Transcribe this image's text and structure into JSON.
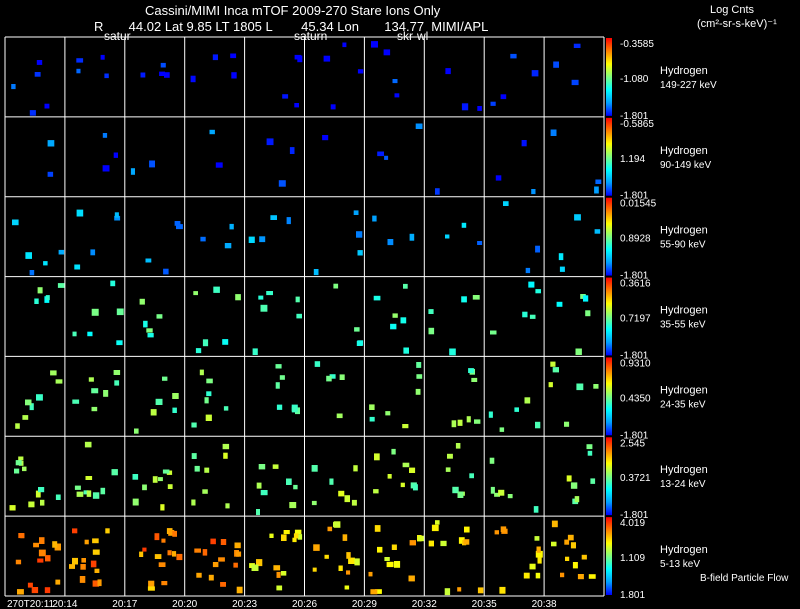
{
  "header": {
    "title": "Cassini/MIMI Inca mTOF  2009-270   Stare    Ions Only",
    "info": "R       44.02 Lat 9.85 LT 1805 L        45.34 Lon       134.77  MIMI/APL",
    "overlay_labels": [
      "satur",
      "saturn",
      "skr-wl"
    ],
    "units_line1": "Log Cnts",
    "units_line2": "(cm²-sr-s-keV)⁻¹"
  },
  "footer": {
    "flow_label": "B-field Particle Flow"
  },
  "colors": {
    "grid": "#ffffff",
    "background": "#000000"
  },
  "chart_data": {
    "type": "heatmap",
    "title": "Cassini/MIMI Inca mTOF 2009-270 Stare Ions Only",
    "species": "Hydrogen",
    "time_labels": [
      "270T20:11",
      "20:14",
      "20:17",
      "20:20",
      "20:23",
      "20:26",
      "20:29",
      "20:32",
      "20:35",
      "20:38"
    ],
    "colorbar_colors": [
      "#0000ff",
      "#00a0ff",
      "#00ffff",
      "#80ff80",
      "#ffff00",
      "#ff8000",
      "#ff0000"
    ],
    "panels": [
      {
        "label": "Hydrogen",
        "range": "149-227 keV",
        "max": "-0.3585",
        "mid": "-1.080",
        "min": "-1.801",
        "level": 0.03,
        "density": 2.5
      },
      {
        "label": "Hydrogen",
        "range": "90-149 keV",
        "max": "-0.5865",
        "mid": "1.194",
        "min": "-1.801",
        "level": 0.08,
        "density": 1.2
      },
      {
        "label": "Hydrogen",
        "range": "55-90 keV",
        "max": "0.01545",
        "mid": "0.8928",
        "min": "-1.801",
        "level": 0.2,
        "density": 2.5
      },
      {
        "label": "Hydrogen",
        "range": "35-55 keV",
        "max": "0.3616",
        "mid": "0.7197",
        "min": "-1.801",
        "level": 0.42,
        "density": 4
      },
      {
        "label": "Hydrogen",
        "range": "24-35 keV",
        "max": "0.9310",
        "mid": "0.4350",
        "min": "-1.801",
        "level": 0.5,
        "density": 5
      },
      {
        "label": "Hydrogen",
        "range": "13-24 keV",
        "max": "2.545",
        "mid": "0.3721",
        "min": "-1.801",
        "level": 0.52,
        "density": 7
      },
      {
        "label": "Hydrogen",
        "range": "5-13 keV",
        "max": "4.019",
        "mid": "1.109",
        "min": "1.801",
        "level": 0.7,
        "density": 11
      }
    ]
  }
}
